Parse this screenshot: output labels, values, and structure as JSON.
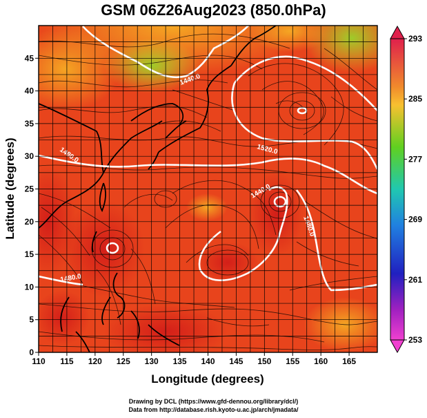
{
  "title": "GSM 06Z26Aug2023 (850.0hPa)",
  "credits": {
    "line1": "Drawing by DCL (https://www.gfd-dennou.org/library/dcl/)",
    "line2": "Data from http://database.rish.kyoto-u.ac.jp/arch/jmadata/"
  },
  "map": {
    "xlabel": "Longitude (degrees)",
    "ylabel": "Latitude  (degrees)",
    "lon_range": [
      110,
      170
    ],
    "lat_range": [
      0,
      50
    ],
    "lon_ticks": [
      "110",
      "115",
      "120",
      "125",
      "130",
      "135",
      "140",
      "145",
      "150",
      "155",
      "160",
      "165"
    ],
    "lat_ticks": [
      "0",
      "5",
      "10",
      "15",
      "20",
      "25",
      "30",
      "35",
      "40",
      "45"
    ],
    "contour_labels": [
      "1440.0",
      "1480.0",
      "1520.0",
      "1440.0",
      "1480.0",
      "1480.0"
    ],
    "colors": {
      "land_outline": "#000000",
      "contour": "#ffffff",
      "field_warm": "#e8401c",
      "field_hot": "#d61a1a",
      "field_cool": "#f4a020",
      "field_cold": "#a8d82a"
    }
  },
  "colorbar": {
    "labels": [
      "293",
      "285",
      "277",
      "269",
      "261",
      "253"
    ],
    "stops": [
      "#e0204c",
      "#f08a2c",
      "#f8c030",
      "#60d020",
      "#20c8b0",
      "#2080e0",
      "#2020c0",
      "#a020c0",
      "#f040d0"
    ]
  }
}
